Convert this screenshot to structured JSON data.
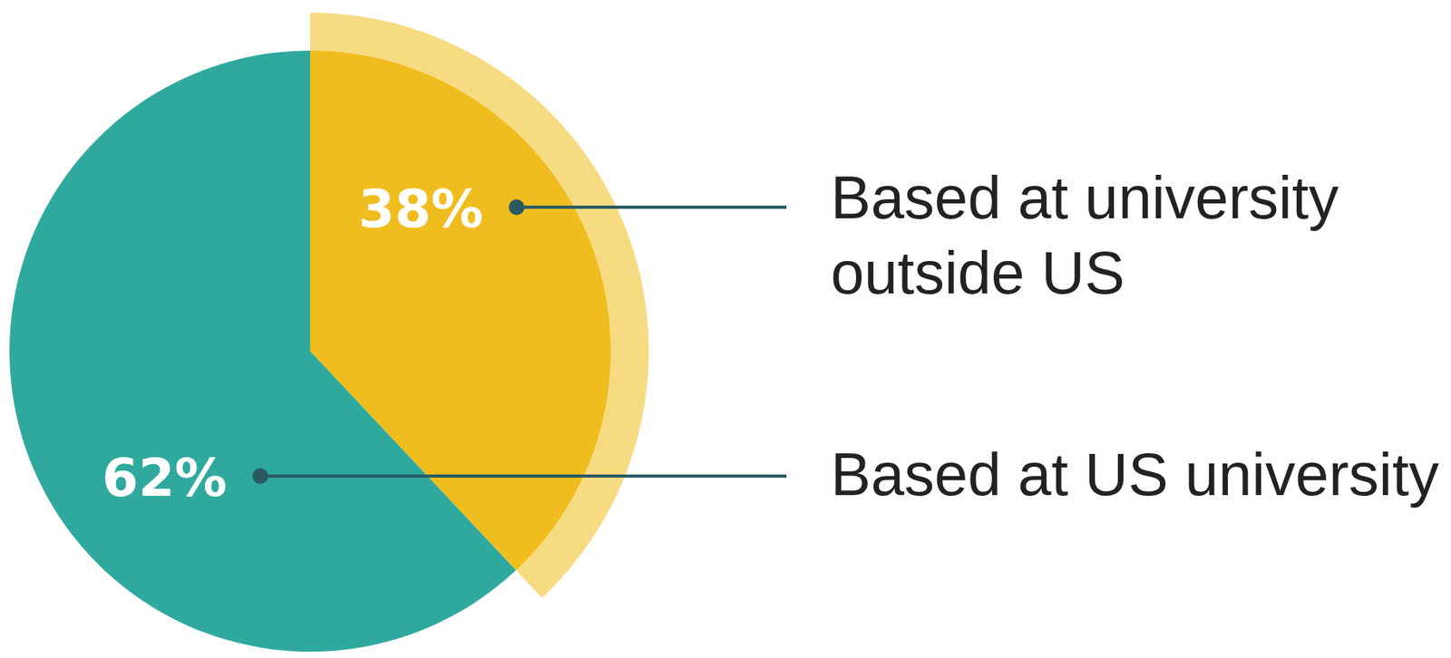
{
  "chart_data": {
    "type": "pie",
    "categories": [
      "Based at university outside US",
      "Based at US university"
    ],
    "values": [
      38,
      62
    ],
    "value_labels": [
      "38%",
      "62%"
    ],
    "colors": [
      "#f0bd1e",
      "#2fa99e"
    ],
    "data_labels": true
  }
}
